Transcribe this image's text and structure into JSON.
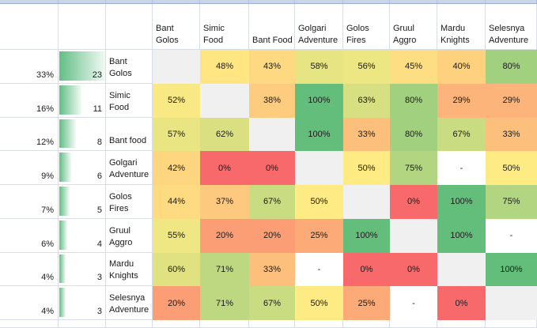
{
  "sheet": {
    "columns": [
      "Bant Golos",
      "Simic Food",
      "Bant Food",
      "Golgari Adventure",
      "Golos Fires",
      "Gruul Aggro",
      "Mardu Knights",
      "Selesnya Adventure"
    ],
    "rows": [
      {
        "share": "33%",
        "count": "23",
        "name": "Bant Golos",
        "cells": [
          null,
          48,
          43,
          58,
          56,
          45,
          40,
          80
        ]
      },
      {
        "share": "16%",
        "count": "11",
        "name": "Simic Food",
        "cells": [
          52,
          null,
          38,
          100,
          63,
          80,
          29,
          29
        ]
      },
      {
        "share": "12%",
        "count": "8",
        "name": "Bant food",
        "cells": [
          57,
          62,
          null,
          100,
          33,
          80,
          67,
          33
        ]
      },
      {
        "share": "9%",
        "count": "6",
        "name": "Golgari Adventure",
        "cells": [
          42,
          0,
          0,
          null,
          50,
          75,
          "-",
          50
        ]
      },
      {
        "share": "7%",
        "count": "5",
        "name": "Golos Fires",
        "cells": [
          44,
          37,
          67,
          50,
          null,
          0,
          100,
          75
        ]
      },
      {
        "share": "6%",
        "count": "4",
        "name": "Gruul Aggro",
        "cells": [
          55,
          20,
          20,
          25,
          100,
          null,
          100,
          "-"
        ]
      },
      {
        "share": "4%",
        "count": "3",
        "name": "Mardu Knights",
        "cells": [
          60,
          71,
          33,
          "-",
          0,
          0,
          null,
          100
        ]
      },
      {
        "share": "4%",
        "count": "3",
        "name": "Selesnya Adventure",
        "cells": [
          20,
          71,
          67,
          50,
          25,
          "-",
          0,
          null
        ]
      }
    ],
    "max_count": 23,
    "no_data_symbol": "-"
  },
  "colors": {
    "scale_min_red": "#f8696b",
    "scale_mid_yellow": "#ffeb84",
    "scale_max_green": "#63be7b",
    "diagonal_fill": "#f0f0f0",
    "gridline": "#d8dde8",
    "databar_start": "#62be85",
    "databar_end": "#f4fbf7",
    "frozen_strip_fill": "#cbd5e9",
    "frozen_strip_border": "#9caecf"
  }
}
